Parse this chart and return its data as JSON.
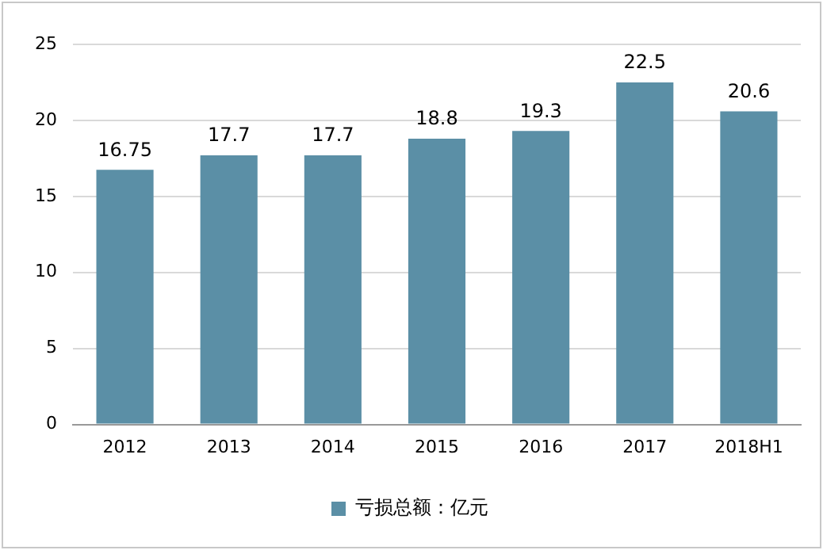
{
  "chart_data": {
    "type": "bar",
    "categories": [
      "2012",
      "2013",
      "2014",
      "2015",
      "2016",
      "2017",
      "2018H1"
    ],
    "series": [
      {
        "name": "亏损总额：亿元",
        "color": "#5b8fa6",
        "values": [
          16.75,
          17.7,
          17.7,
          18.8,
          19.3,
          22.5,
          20.6
        ]
      }
    ],
    "ylim": [
      0,
      25
    ],
    "yticks": [
      0,
      5,
      10,
      15,
      20,
      25
    ],
    "grid": "y",
    "legend": "bottom",
    "data_labels": true
  }
}
